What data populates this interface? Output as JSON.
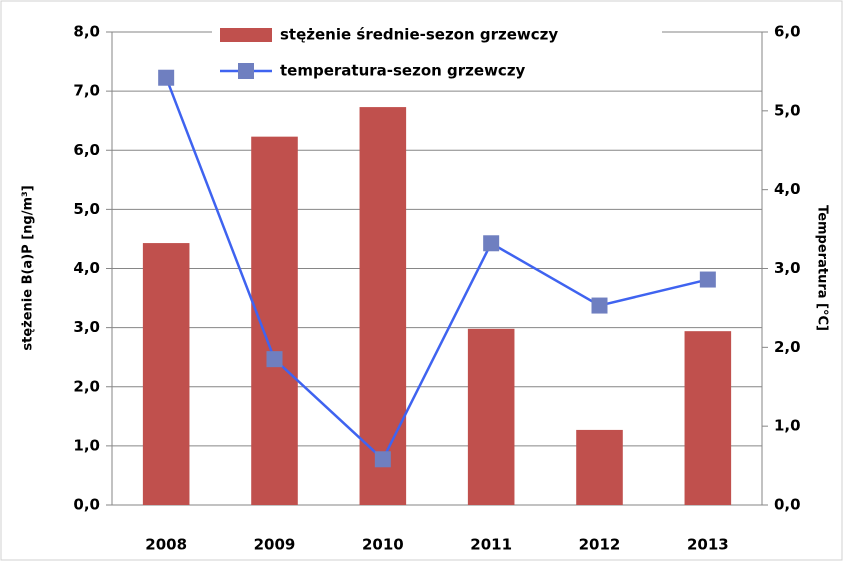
{
  "chart_data": {
    "type": "bar_line",
    "categories": [
      "2008",
      "2009",
      "2010",
      "2011",
      "2012",
      "2013"
    ],
    "series": [
      {
        "name": "stężenie średnie-sezon grzewczy",
        "type": "bar",
        "color": "#c0504d",
        "values": [
          4.43,
          6.23,
          6.73,
          2.98,
          1.27,
          2.94
        ]
      },
      {
        "name": "temperatura-sezon grzewczy",
        "type": "line",
        "axis": "y2",
        "color": "#3f63f0",
        "marker_color": "#6f7fc0",
        "values": [
          5.42,
          1.85,
          0.58,
          3.32,
          2.53,
          2.86
        ]
      }
    ],
    "ylabel": "stężenie B(a)P [ng/m³]",
    "y2label": "Temperatura [°C]",
    "ylim": [
      0,
      8
    ],
    "yticks": [
      {
        "value": 0,
        "label": "0,0"
      },
      {
        "value": 1,
        "label": "1,0"
      },
      {
        "value": 2,
        "label": "2,0"
      },
      {
        "value": 3,
        "label": "3,0"
      },
      {
        "value": 4,
        "label": "4,0"
      },
      {
        "value": 5,
        "label": "5,0"
      },
      {
        "value": 6,
        "label": "6,0"
      },
      {
        "value": 7,
        "label": "7,0"
      },
      {
        "value": 8,
        "label": "8,0"
      }
    ],
    "y2lim": [
      0,
      6
    ],
    "y2ticks": [
      {
        "value": 0,
        "label": "0,0"
      },
      {
        "value": 1,
        "label": "1,0"
      },
      {
        "value": 2,
        "label": "2,0"
      },
      {
        "value": 3,
        "label": "3,0"
      },
      {
        "value": 4,
        "label": "4,0"
      },
      {
        "value": 5,
        "label": "5,0"
      },
      {
        "value": 6,
        "label": "6,0"
      }
    ],
    "grid": true,
    "legend": "top"
  }
}
